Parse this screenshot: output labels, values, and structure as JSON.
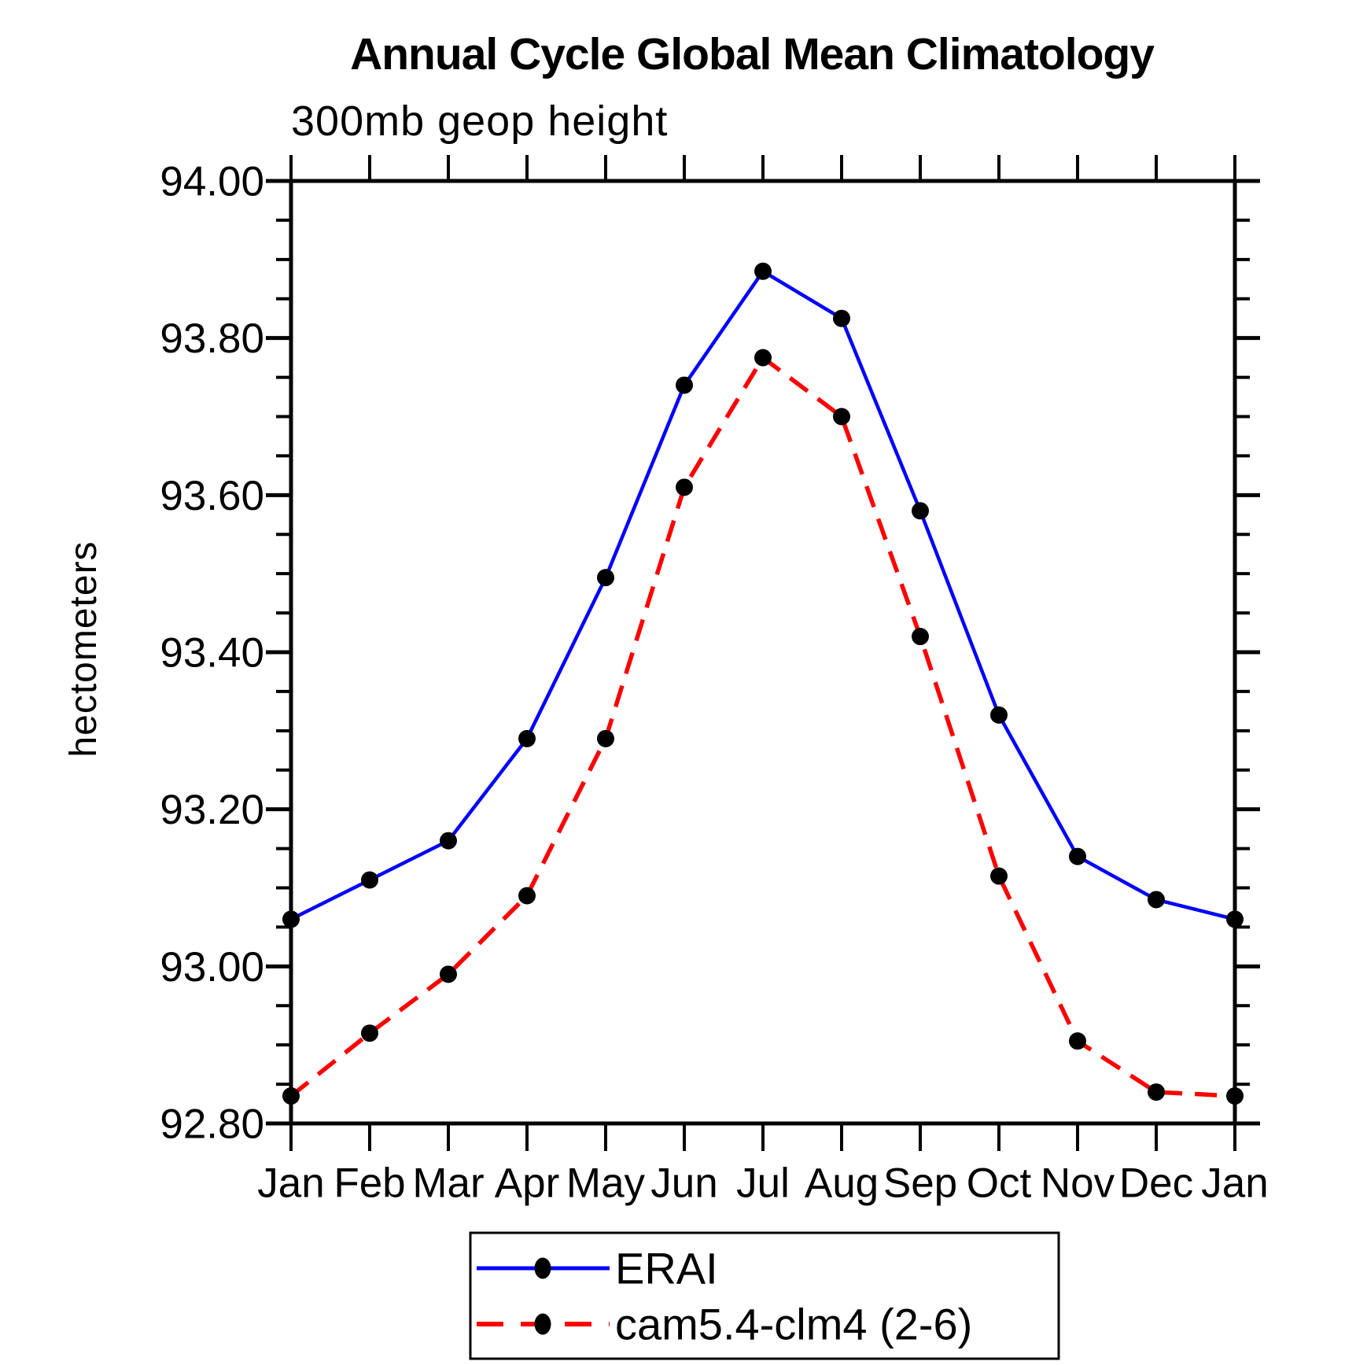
{
  "page": {
    "background_color": "#ffffff",
    "axis_color": "#000000",
    "marker_color": "#000000"
  },
  "chart_data": {
    "type": "line",
    "title": "Annual Cycle Global Mean Climatology",
    "subtitle": "300mb geop height",
    "xlabel": "",
    "ylabel": "hectometers",
    "categories": [
      "Jan",
      "Feb",
      "Mar",
      "Apr",
      "May",
      "Jun",
      "Jul",
      "Aug",
      "Sep",
      "Oct",
      "Nov",
      "Dec",
      "Jan"
    ],
    "ylim": [
      92.8,
      94.0
    ],
    "y_major_step": 0.2,
    "y_minor_step": 0.05,
    "y_tick_labels": [
      "92.80",
      "93.00",
      "93.20",
      "93.40",
      "93.60",
      "93.80",
      "94.00"
    ],
    "grid": false,
    "legend_position": "bottom-center",
    "series": [
      {
        "name": "ERAI",
        "color": "#0000ff",
        "line_style": "solid",
        "marker": "filled-circle",
        "marker_color": "#000000",
        "values": [
          93.06,
          93.11,
          93.16,
          93.29,
          93.495,
          93.74,
          93.885,
          93.825,
          93.58,
          93.32,
          93.14,
          93.085,
          93.06
        ]
      },
      {
        "name": "cam5.4-clm4 (2-6)",
        "color": "#ff0000",
        "line_style": "dashed",
        "marker": "filled-circle",
        "marker_color": "#000000",
        "values": [
          92.835,
          92.915,
          92.99,
          93.09,
          93.29,
          93.61,
          93.775,
          93.7,
          93.42,
          93.115,
          92.905,
          92.84,
          92.835
        ]
      }
    ]
  }
}
